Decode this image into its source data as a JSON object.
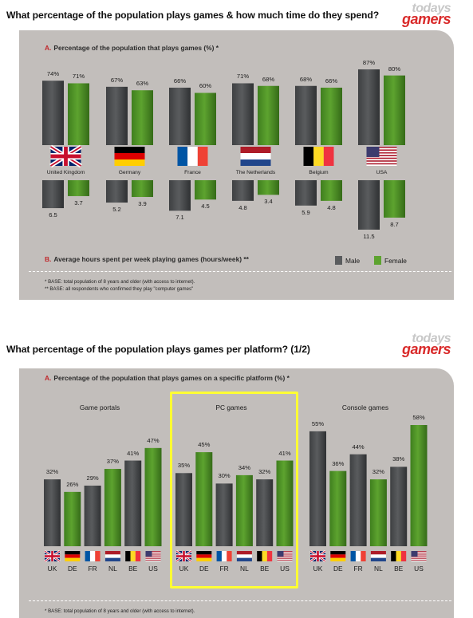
{
  "page": {
    "title1": "What percentage of the population plays games & how much time do they spend?",
    "title2": "What percentage of the population plays games per platform? (1/2)",
    "logo_top": "todays",
    "logo_bottom": "gamers"
  },
  "chart1": {
    "section_a_letter": "A.",
    "section_a_label": "Percentage of the population that plays games (%) *",
    "section_b_letter": "B.",
    "section_b_label": "Average hours spent per week playing games (hours/week) **",
    "legend_male": "Male",
    "legend_female": "Female",
    "footnote1": "* BASE: total population of 8 years and older (with access to internet).",
    "footnote2": "** BASE: all respondents who confirmed they play \"computer games\""
  },
  "chart2": {
    "section_a_letter": "A.",
    "section_a_label": "Percentage of the population that plays games on a specific platform (%) *",
    "footnote1": "* BASE: total population of 8 years and older (with access to internet)."
  },
  "colors": {
    "male": "#5a5c5e",
    "female": "#5da32f",
    "panel": "#c2bebb",
    "highlight": "#ffff33",
    "accent": "#c0282c"
  },
  "chart_data": [
    {
      "type": "bar",
      "title": "A. Percentage of the population that plays games (%) *",
      "categories": [
        "United Kingdom",
        "Germany",
        "France",
        "The Netherlands",
        "Belgium",
        "USA"
      ],
      "flags": [
        "uk",
        "de",
        "fr",
        "nl",
        "be",
        "us"
      ],
      "series": [
        {
          "name": "Male",
          "values": [
            74,
            67,
            66,
            71,
            68,
            87
          ],
          "labels": [
            "74%",
            "67%",
            "66%",
            "71%",
            "68%",
            "87%"
          ]
        },
        {
          "name": "Female",
          "values": [
            71,
            63,
            60,
            68,
            66,
            80
          ],
          "labels": [
            "71%",
            "63%",
            "60%",
            "68%",
            "66%",
            "80%"
          ]
        }
      ],
      "ylim": [
        0,
        100
      ]
    },
    {
      "type": "bar",
      "title": "B. Average hours spent per week playing games (hours/week) **",
      "categories": [
        "United Kingdom",
        "Germany",
        "France",
        "The Netherlands",
        "Belgium",
        "USA"
      ],
      "series": [
        {
          "name": "Male",
          "values": [
            6.5,
            5.2,
            7.1,
            4.8,
            5.9,
            11.5
          ],
          "labels": [
            "6.5",
            "5.2",
            "7.1",
            "4.8",
            "5.9",
            "11.5"
          ]
        },
        {
          "name": "Female",
          "values": [
            3.7,
            3.9,
            4.5,
            3.4,
            4.8,
            8.7
          ],
          "labels": [
            "3.7",
            "3.9",
            "4.5",
            "3.4",
            "4.8",
            "8.7"
          ]
        }
      ],
      "orientation": "downward"
    },
    {
      "type": "bar",
      "title": "Game portals",
      "categories": [
        "UK",
        "DE",
        "FR",
        "NL",
        "BE",
        "US"
      ],
      "values": [
        32,
        26,
        29,
        37,
        41,
        47
      ],
      "labels": [
        "32%",
        "26%",
        "29%",
        "37%",
        "41%",
        "47%"
      ],
      "bar_colors": [
        "male",
        "female",
        "male",
        "female",
        "male",
        "female"
      ]
    },
    {
      "type": "bar",
      "title": "PC games",
      "categories": [
        "UK",
        "DE",
        "FR",
        "NL",
        "BE",
        "US"
      ],
      "values": [
        35,
        45,
        30,
        34,
        32,
        41
      ],
      "labels": [
        "35%",
        "45%",
        "30%",
        "34%",
        "32%",
        "41%"
      ],
      "bar_colors": [
        "male",
        "female",
        "male",
        "female",
        "male",
        "female"
      ],
      "highlighted": true
    },
    {
      "type": "bar",
      "title": "Console games",
      "categories": [
        "UK",
        "DE",
        "FR",
        "NL",
        "BE",
        "US"
      ],
      "values": [
        55,
        36,
        44,
        32,
        38,
        58
      ],
      "labels": [
        "55%",
        "36%",
        "44%",
        "32%",
        "38%",
        "58%"
      ],
      "bar_colors": [
        "male",
        "female",
        "male",
        "female",
        "male",
        "female"
      ]
    }
  ]
}
